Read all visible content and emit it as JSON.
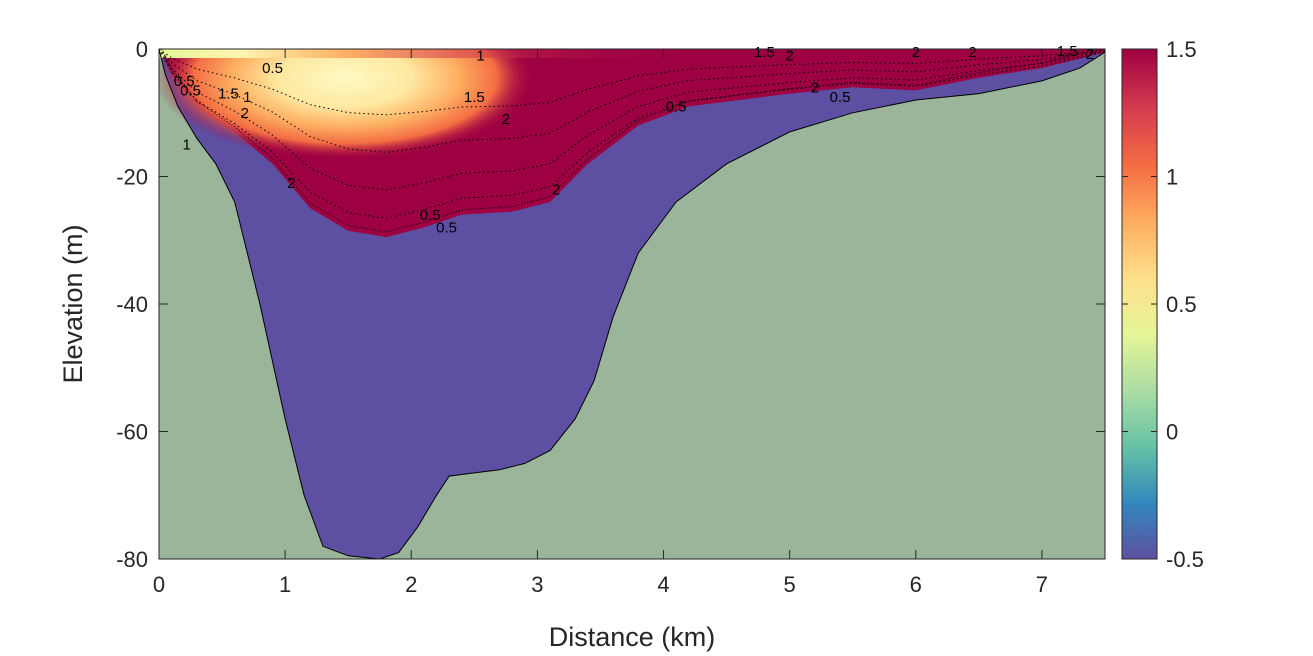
{
  "colors": {
    "bathymetry": "#9ab59a",
    "lower_layer": "#5d4fa2",
    "upper_layer": "#9e0142",
    "warm_core": "#fff5b8",
    "colorbar_stops": [
      "#5e4fa2",
      "#3288bd",
      "#66c2a5",
      "#abdda4",
      "#e6f598",
      "#fee08b",
      "#fdae61",
      "#f46d43",
      "#d53e4f",
      "#9e0142"
    ]
  },
  "chart_data": {
    "type": "heatmap",
    "title": "",
    "xlabel": "Distance (km)",
    "ylabel": "Elevation (m)",
    "xlim": [
      0,
      7.5
    ],
    "ylim": [
      -80,
      0
    ],
    "x_ticks": [
      0,
      1,
      2,
      3,
      4,
      5,
      6,
      7
    ],
    "x_tick_labels": [
      "0",
      "1",
      "2",
      "3",
      "4",
      "5",
      "6",
      "7"
    ],
    "y_ticks": [
      0,
      -20,
      -40,
      -60,
      -80
    ],
    "y_tick_labels": [
      "0",
      "-20",
      "-40",
      "-60",
      "-80"
    ],
    "colorbar": {
      "limits": [
        -0.5,
        1.5
      ],
      "ticks": [
        1.5,
        1,
        0.5,
        0,
        -0.5
      ],
      "tick_labels": [
        "1.5",
        "1",
        "0.5",
        "0",
        "-0.5"
      ]
    },
    "bathymetry_profile": [
      [
        0,
        0
      ],
      [
        0.05,
        -4
      ],
      [
        0.15,
        -9
      ],
      [
        0.3,
        -14
      ],
      [
        0.45,
        -18
      ],
      [
        0.6,
        -24
      ],
      [
        0.8,
        -40
      ],
      [
        1.0,
        -58
      ],
      [
        1.15,
        -70
      ],
      [
        1.3,
        -78
      ],
      [
        1.5,
        -79.5
      ],
      [
        1.75,
        -80
      ],
      [
        1.9,
        -79
      ],
      [
        2.05,
        -75
      ],
      [
        2.2,
        -70
      ],
      [
        2.3,
        -67
      ],
      [
        2.5,
        -66.5
      ],
      [
        2.7,
        -66
      ],
      [
        2.9,
        -65
      ],
      [
        3.1,
        -63
      ],
      [
        3.3,
        -58
      ],
      [
        3.45,
        -52
      ],
      [
        3.6,
        -42
      ],
      [
        3.8,
        -32
      ],
      [
        4.1,
        -24
      ],
      [
        4.5,
        -18
      ],
      [
        5.0,
        -13
      ],
      [
        5.5,
        -10
      ],
      [
        6.0,
        -8
      ],
      [
        6.5,
        -7
      ],
      [
        7.0,
        -5
      ],
      [
        7.3,
        -3
      ],
      [
        7.5,
        -0.5
      ]
    ],
    "upper_layer_bottom": [
      [
        0,
        0
      ],
      [
        0.1,
        -4
      ],
      [
        0.3,
        -9
      ],
      [
        0.6,
        -13
      ],
      [
        0.9,
        -18
      ],
      [
        1.2,
        -25
      ],
      [
        1.5,
        -28.5
      ],
      [
        1.8,
        -29.5
      ],
      [
        2.1,
        -28
      ],
      [
        2.4,
        -26
      ],
      [
        2.8,
        -25.5
      ],
      [
        3.1,
        -24
      ],
      [
        3.4,
        -18
      ],
      [
        3.8,
        -12
      ],
      [
        4.2,
        -9
      ],
      [
        4.6,
        -8
      ],
      [
        5.0,
        -7
      ],
      [
        5.5,
        -6
      ],
      [
        6.0,
        -6.5
      ],
      [
        6.5,
        -4.5
      ],
      [
        7.0,
        -3
      ],
      [
        7.5,
        -0.5
      ]
    ],
    "contour_labels": [
      {
        "text": "0.5",
        "x": 0.9,
        "y": -3
      },
      {
        "text": "1",
        "x": 2.55,
        "y": -1
      },
      {
        "text": "1.5",
        "x": 4.8,
        "y": -0.5
      },
      {
        "text": "2",
        "x": 5.0,
        "y": -1
      },
      {
        "text": "2",
        "x": 6.0,
        "y": -0.5
      },
      {
        "text": "2",
        "x": 6.45,
        "y": -0.5
      },
      {
        "text": "1.5",
        "x": 7.2,
        "y": -0.3
      },
      {
        "text": "2",
        "x": 7.38,
        "y": -0.8
      },
      {
        "text": "1.5",
        "x": 2.5,
        "y": -7.5
      },
      {
        "text": "2",
        "x": 2.75,
        "y": -11
      },
      {
        "text": "1.5",
        "x": 0.55,
        "y": -7
      },
      {
        "text": "1",
        "x": 0.7,
        "y": -7.5
      },
      {
        "text": "2",
        "x": 0.68,
        "y": -10
      },
      {
        "text": "0.5",
        "x": 0.2,
        "y": -5
      },
      {
        "text": "0.5",
        "x": 0.25,
        "y": -6.5
      },
      {
        "text": "1",
        "x": 0.22,
        "y": -15
      },
      {
        "text": "2",
        "x": 1.05,
        "y": -21
      },
      {
        "text": "2",
        "x": 3.15,
        "y": -22
      },
      {
        "text": "2",
        "x": 5.2,
        "y": -6
      },
      {
        "text": "0.5",
        "x": 2.15,
        "y": -26
      },
      {
        "text": "0.5",
        "x": 2.28,
        "y": -28
      },
      {
        "text": "0.5",
        "x": 4.1,
        "y": -9
      },
      {
        "text": "0.5",
        "x": 5.4,
        "y": -7.5
      }
    ]
  }
}
